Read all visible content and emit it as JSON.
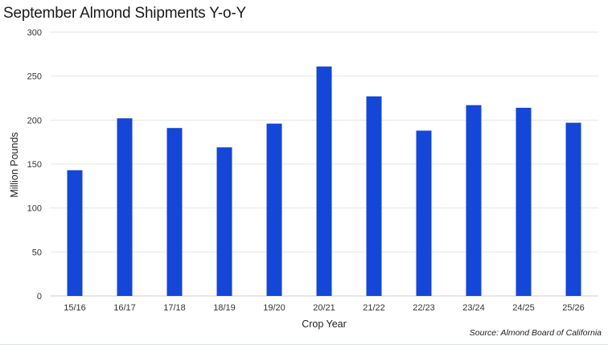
{
  "title": "September Almond Shipments Y-o-Y",
  "source": "Source: Almond Board of California",
  "chart_data": {
    "type": "bar",
    "categories": [
      "15/16",
      "16/17",
      "17/18",
      "18/19",
      "19/20",
      "20/21",
      "21/22",
      "22/23",
      "23/24",
      "24/25",
      "25/26"
    ],
    "values": [
      143,
      202,
      191,
      169,
      196,
      261,
      227,
      188,
      217,
      214,
      197
    ],
    "xlabel": "Crop Year",
    "ylabel": "Million Pounds",
    "ylim": [
      0,
      300
    ],
    "yticks": [
      0,
      50,
      100,
      150,
      200,
      250,
      300
    ],
    "grid": true,
    "color": "#1446d8"
  }
}
